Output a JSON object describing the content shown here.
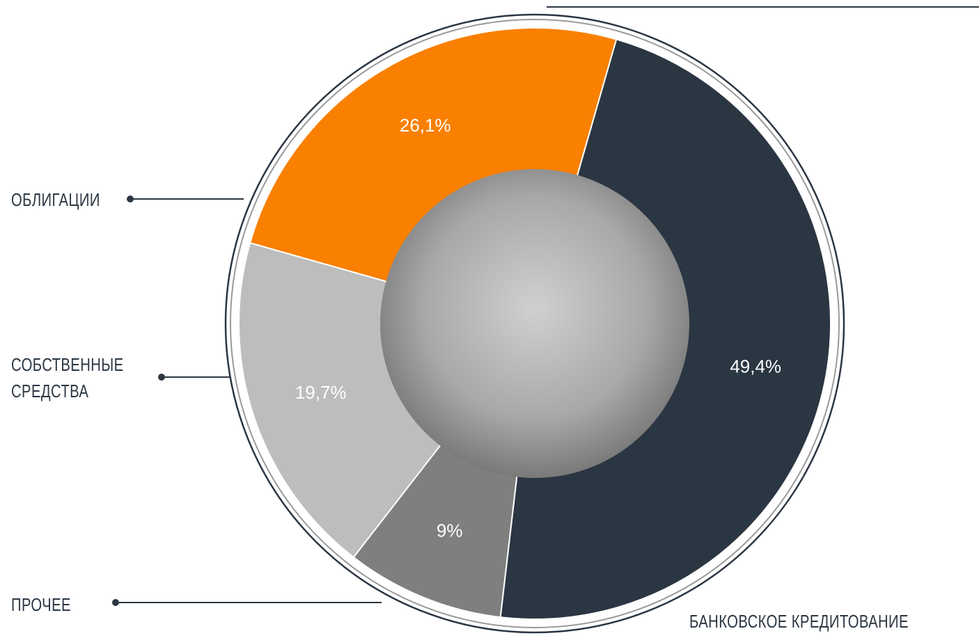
{
  "chart_data": {
    "type": "pie",
    "categories": [
      "БАНКОВСКОЕ КРЕДИТОВАНИЕ",
      "ПРОЧЕЕ",
      "СОБСТВЕННЫЕ\nСРЕДСТВА",
      "ОБЛИГАЦИИ"
    ],
    "values": [
      49.4,
      9,
      19.7,
      26.1
    ],
    "value_labels": [
      "49,4%",
      "9%",
      "19,7%",
      "26,1%"
    ],
    "colors": [
      "#2b3643",
      "#7f7f7f",
      "#bdbdbd",
      "#f98000"
    ]
  }
}
